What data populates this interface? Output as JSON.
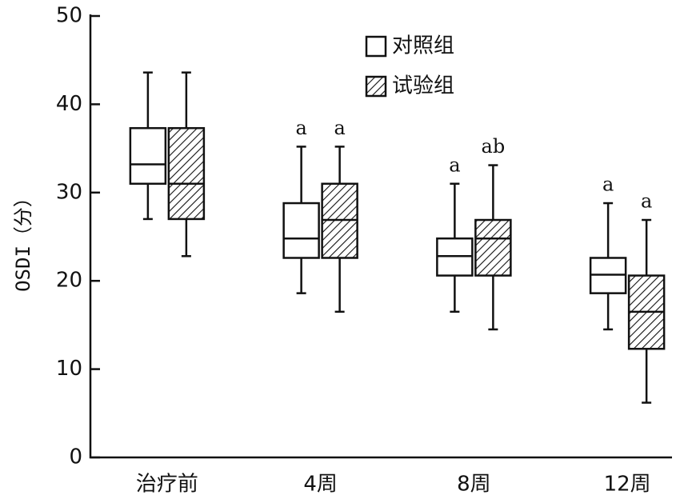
{
  "chart_data": {
    "type": "box",
    "y_label": "OSDI（分）",
    "categories": [
      "治疗前",
      "4周",
      "8周",
      "12周"
    ],
    "ylim": [
      0,
      50
    ],
    "yticks": [
      0,
      10,
      20,
      30,
      40,
      50
    ],
    "legend": "top",
    "series": [
      {
        "name": "对照组",
        "color": "#ffffff",
        "pattern": "none",
        "whislo": [
          27.0,
          18.6,
          16.5,
          14.5
        ],
        "q1": [
          31.0,
          22.6,
          20.6,
          18.6
        ],
        "med": [
          33.2,
          24.8,
          22.8,
          20.7
        ],
        "q3": [
          37.3,
          28.8,
          24.8,
          22.6
        ],
        "whishi": [
          43.6,
          35.2,
          31.0,
          28.8
        ],
        "annotations": [
          null,
          "a",
          "a",
          "a"
        ]
      },
      {
        "name": "试验组",
        "color": "#ffffff",
        "pattern": "diagonal",
        "whislo": [
          22.8,
          16.5,
          14.5,
          6.2
        ],
        "q1": [
          27.0,
          22.6,
          20.6,
          12.3
        ],
        "med": [
          31.0,
          26.9,
          24.8,
          16.5
        ],
        "q3": [
          37.3,
          31.0,
          26.9,
          20.6
        ],
        "whishi": [
          43.6,
          35.2,
          33.1,
          26.9
        ],
        "annotations": [
          null,
          "a",
          "ab",
          "a"
        ]
      }
    ]
  }
}
